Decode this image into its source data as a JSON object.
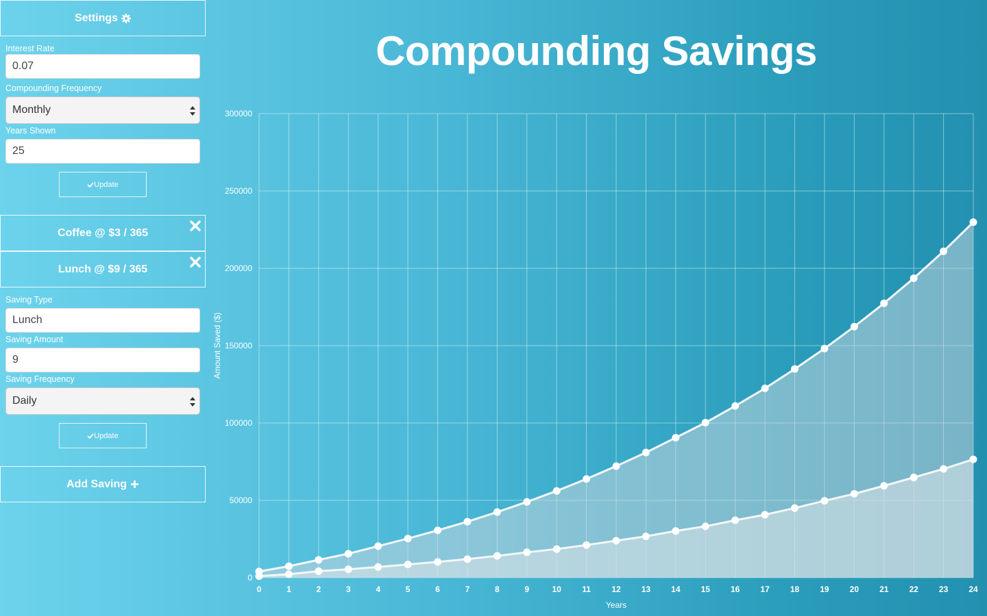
{
  "sidebar": {
    "settings": {
      "header": "Settings",
      "interest_rate_label": "Interest Rate",
      "interest_rate_value": "0.07",
      "compounding_frequency_label": "Compounding Frequency",
      "compounding_frequency_value": "Monthly",
      "years_shown_label": "Years Shown",
      "years_shown_value": "25",
      "update_label": "Update"
    },
    "savings": [
      {
        "label": "Coffee @ $3 / 365"
      },
      {
        "label": "Lunch @ $9 / 365"
      }
    ],
    "edit": {
      "saving_type_label": "Saving Type",
      "saving_type_value": "Lunch",
      "saving_amount_label": "Saving Amount",
      "saving_amount_value": "9",
      "saving_frequency_label": "Saving Frequency",
      "saving_frequency_value": "Daily",
      "update_label": "Update"
    },
    "add_saving_label": "Add Saving"
  },
  "page_title": "Compounding Savings",
  "icons": [
    "gear-icon",
    "close-icon",
    "check-icon",
    "plus-icon",
    "select-arrows-icon"
  ],
  "colors": {
    "accent": "#49b7d6",
    "line": "#ffffff"
  },
  "chart_data": {
    "type": "area",
    "xlabel": "Years",
    "ylabel": "Amount Saved ($)",
    "x": [
      0,
      1,
      2,
      3,
      4,
      5,
      6,
      7,
      8,
      9,
      10,
      11,
      12,
      13,
      14,
      15,
      16,
      17,
      18,
      19,
      20,
      21,
      22,
      23,
      24
    ],
    "ylim": [
      0,
      300000
    ],
    "yticks": [
      0,
      50000,
      100000,
      150000,
      200000,
      250000,
      300000
    ],
    "grid": true,
    "series": [
      {
        "values": [
          4000,
          7400,
          11500,
          15500,
          20400,
          25300,
          30600,
          36200,
          42400,
          49000,
          56100,
          63800,
          72100,
          80900,
          90500,
          100200,
          111000,
          122400,
          134900,
          148100,
          162300,
          177400,
          193600,
          211000,
          229800
        ]
      },
      {
        "values": [
          1000,
          2200,
          4200,
          5400,
          6900,
          8500,
          10200,
          12000,
          14100,
          16400,
          18500,
          21100,
          23900,
          26700,
          30200,
          33200,
          37100,
          40700,
          45000,
          49700,
          54200,
          59400,
          64800,
          70300,
          76500
        ]
      }
    ]
  }
}
